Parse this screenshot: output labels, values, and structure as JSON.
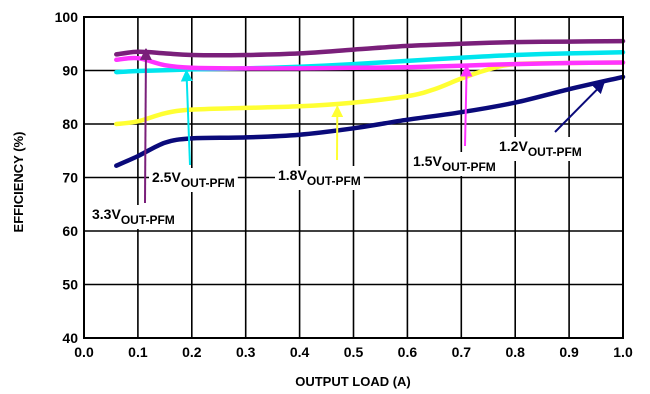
{
  "chart_data": {
    "type": "line",
    "xlabel": "OUTPUT LOAD (A)",
    "ylabel": "EFFICIENCY (%)",
    "xlim": [
      0.0,
      1.0
    ],
    "ylim": [
      40,
      100
    ],
    "x_ticks": [
      "0.0",
      "0.1",
      "0.2",
      "0.3",
      "0.4",
      "0.5",
      "0.6",
      "0.7",
      "0.8",
      "0.9",
      "1.0"
    ],
    "y_ticks": [
      "40",
      "50",
      "60",
      "70",
      "80",
      "90",
      "100"
    ],
    "grid": true,
    "series": [
      {
        "name": "3.3VOUT-PFM",
        "color": "#7a1f7a",
        "x": [
          0.06,
          0.1,
          0.15,
          0.2,
          0.3,
          0.4,
          0.5,
          0.6,
          0.7,
          0.8,
          0.9,
          1.0
        ],
        "y": [
          93.0,
          93.5,
          93.2,
          92.9,
          92.9,
          93.2,
          93.9,
          94.6,
          95.0,
          95.3,
          95.4,
          95.5
        ]
      },
      {
        "name": "2.5VOUT-PFM",
        "color": "#00e5ee",
        "x": [
          0.06,
          0.1,
          0.2,
          0.3,
          0.4,
          0.5,
          0.6,
          0.7,
          0.8,
          0.9,
          1.0
        ],
        "y": [
          89.7,
          89.9,
          90.2,
          90.4,
          90.7,
          91.2,
          91.8,
          92.4,
          92.9,
          93.2,
          93.4
        ]
      },
      {
        "name": "1.8VOUT-PFM",
        "color": "#ffff33",
        "x": [
          0.06,
          0.1,
          0.15,
          0.2,
          0.3,
          0.4,
          0.5,
          0.6,
          0.65,
          0.7,
          0.75,
          0.8,
          0.9,
          1.0
        ],
        "y": [
          80.0,
          80.5,
          82.0,
          82.7,
          83.0,
          83.3,
          84.0,
          85.2,
          86.5,
          88.5,
          90.2,
          91.2,
          91.4,
          91.5
        ]
      },
      {
        "name": "1.5VOUT-PFM",
        "color": "#ff33ff",
        "x": [
          0.06,
          0.1,
          0.15,
          0.2,
          0.3,
          0.4,
          0.5,
          0.6,
          0.7,
          0.8,
          0.9,
          1.0
        ],
        "y": [
          92.0,
          92.3,
          91.0,
          90.5,
          90.4,
          90.4,
          90.5,
          90.6,
          90.9,
          91.2,
          91.4,
          91.5
        ]
      },
      {
        "name": "1.2VOUT-PFM",
        "color": "#0a0a7a",
        "x": [
          0.06,
          0.1,
          0.15,
          0.2,
          0.3,
          0.4,
          0.5,
          0.6,
          0.7,
          0.8,
          0.9,
          1.0
        ],
        "y": [
          72.2,
          74.0,
          76.5,
          77.3,
          77.5,
          78.0,
          79.2,
          80.8,
          82.2,
          84.0,
          86.5,
          88.8
        ]
      }
    ],
    "annotations": [
      {
        "main": "3.3V",
        "sub": "OUT-PFM",
        "series": 0,
        "color": "#7a1f7a",
        "arrow_to_x": 0.115,
        "arrow_to_y": 94.0
      },
      {
        "main": "2.5V",
        "sub": "OUT-PFM",
        "series": 1,
        "color": "#00e5ee",
        "arrow_to_x": 0.19,
        "arrow_to_y": 90.0
      },
      {
        "main": "1.8V",
        "sub": "OUT-PFM",
        "series": 2,
        "color": "#ffff33",
        "arrow_to_x": 0.47,
        "arrow_to_y": 83.3
      },
      {
        "main": "1.5V",
        "sub": "OUT-PFM",
        "series": 3,
        "color": "#ff33ff",
        "arrow_to_x": 0.71,
        "arrow_to_y": 90.9
      },
      {
        "main": "1.2V",
        "sub": "OUT-PFM",
        "series": 4,
        "color": "#0a0a7a",
        "arrow_to_x": 0.965,
        "arrow_to_y": 87.8
      }
    ]
  }
}
